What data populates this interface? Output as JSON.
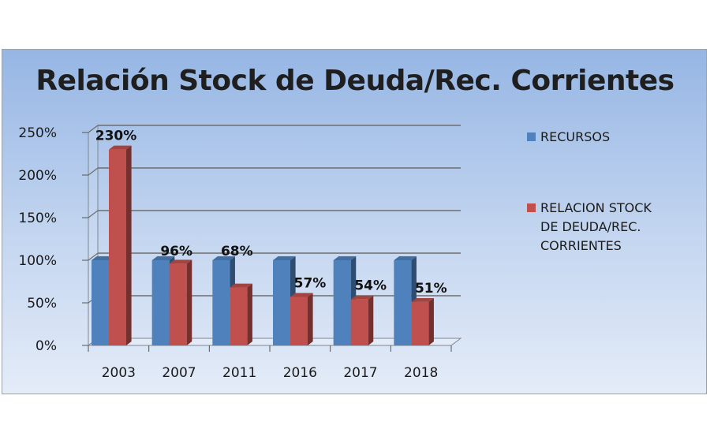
{
  "chart_data": {
    "type": "bar",
    "title": "Relación Stock de Deuda/Rec. Corrientes",
    "categories": [
      "2003",
      "2007",
      "2011",
      "2016",
      "2017",
      "2018"
    ],
    "series": [
      {
        "name": "RECURSOS",
        "values": [
          100,
          100,
          100,
          100,
          100,
          100
        ],
        "color": "#4f81bd"
      },
      {
        "name": "RELACION STOCK DE DEUDA/REC. CORRIENTES",
        "values": [
          230,
          96,
          68,
          57,
          54,
          51
        ],
        "color": "#c0504d"
      }
    ],
    "data_labels": [
      "230%",
      "96%",
      "68%",
      "57%",
      "54%",
      "51%"
    ],
    "yticks": [
      "0%",
      "50%",
      "100%",
      "150%",
      "200%",
      "250%"
    ],
    "ylim": [
      0,
      250
    ],
    "grid": true,
    "legend_position": "right",
    "xlabel": "",
    "ylabel": ""
  },
  "legend": {
    "recursos": "RECURSOS",
    "relacion": "RELACION STOCK\nDE DEUDA/REC.\nCORRIENTES"
  }
}
